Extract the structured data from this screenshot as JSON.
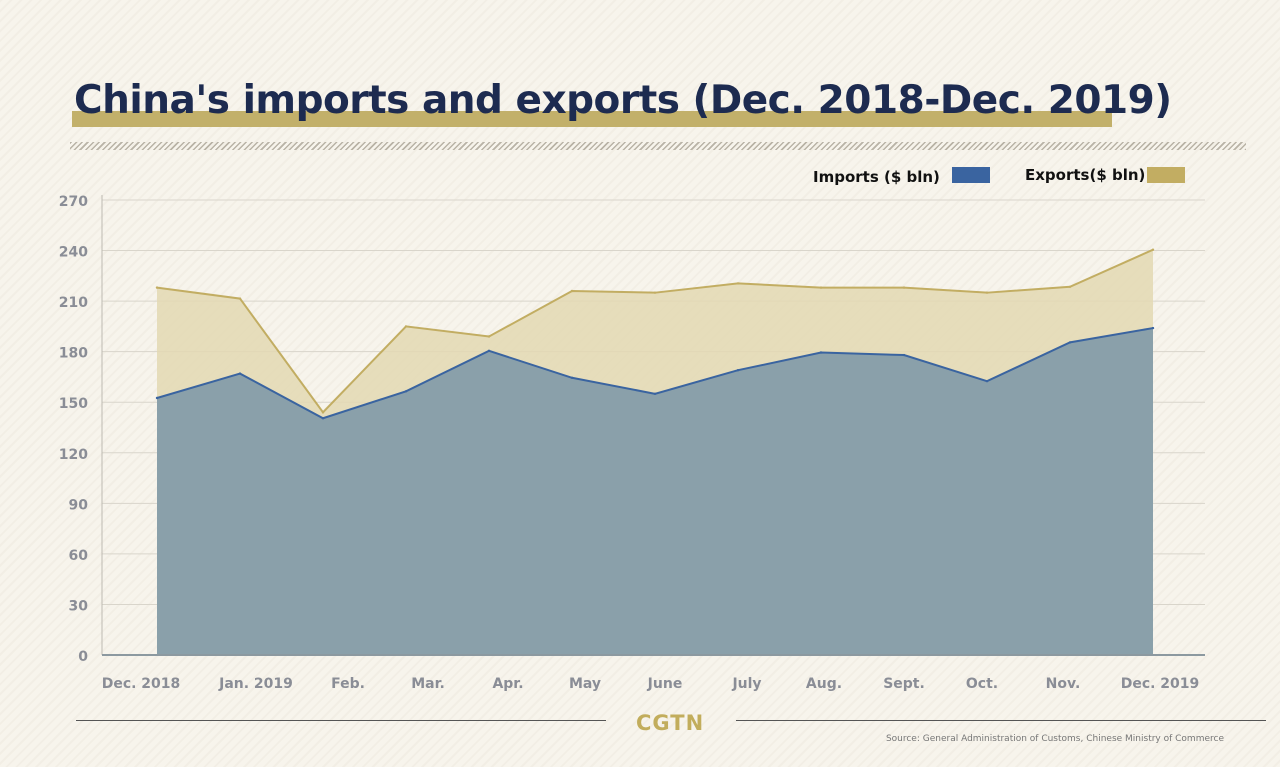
{
  "brand": "CGTN",
  "source": "Source: General Administration of Customs, Chinese Ministry of Commerce",
  "colors": {
    "imports": "#3a64a0",
    "imports_area": "#8aa0aa",
    "exports": "#c2ad62",
    "exports_area": "#e3d8b3",
    "title_text": "#1d2b50",
    "title_underline": "#c2b06a"
  },
  "chart_data": {
    "type": "area",
    "title": "China's imports and exports (Dec. 2018-Dec. 2019)",
    "categories": [
      "Dec. 2018",
      "Jan. 2019",
      "Feb.",
      "Mar.",
      "Apr.",
      "May",
      "June",
      "July",
      "Aug.",
      "Sept.",
      "Oct.",
      "Nov.",
      "Dec. 2019"
    ],
    "series": [
      {
        "name": "Imports ($ bln)",
        "values": [
          152.5,
          167,
          140.5,
          156.5,
          180.5,
          164.5,
          155,
          169,
          179.5,
          178,
          162.5,
          185.5,
          194
        ]
      },
      {
        "name": "Exports($ bln)",
        "values": [
          218,
          211.5,
          144,
          195,
          189,
          216,
          215,
          220.5,
          218,
          218,
          215,
          218.5,
          240.5
        ]
      }
    ],
    "yticks": [
      0,
      30,
      60,
      90,
      120,
      150,
      180,
      210,
      240,
      270
    ],
    "ylim": [
      0,
      270
    ],
    "xlabel": "",
    "ylabel": "",
    "grid": true,
    "legend": "top-right"
  }
}
